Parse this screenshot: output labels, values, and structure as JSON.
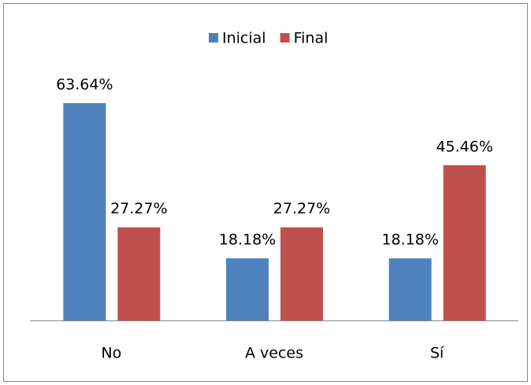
{
  "chart_data": {
    "type": "bar",
    "categories": [
      "No",
      "A veces",
      "Sí"
    ],
    "series": [
      {
        "name": "Inicial",
        "color": "#4f81bd",
        "values": [
          63.64,
          18.18,
          18.18
        ],
        "value_labels": [
          "63.64%",
          "18.18%",
          "18.18%"
        ]
      },
      {
        "name": "Final",
        "color": "#c0504d",
        "values": [
          27.27,
          27.27,
          45.46
        ],
        "value_labels": [
          "27.27%",
          "27.27%",
          "45.46%"
        ]
      }
    ],
    "legend": "top"
  }
}
